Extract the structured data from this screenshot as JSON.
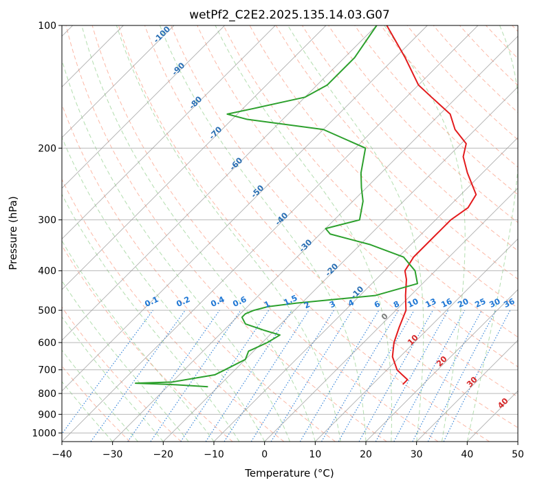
{
  "title": "wetPf2_C2E2.2025.135.14.03.G07",
  "chart_data": {
    "type": "line",
    "title": "wetPf2_C2E2.2025.135.14.03.G07",
    "xlabel": "Temperature (°C)",
    "ylabel": "Pressure (hPa)",
    "xlim": [
      -40,
      50
    ],
    "ylim": [
      1050,
      100
    ],
    "y_scale": "log",
    "grid": true,
    "x_ticks": [
      "−40",
      "−30",
      "−20",
      "−10",
      "0",
      "10",
      "20",
      "30",
      "40",
      "50"
    ],
    "y_ticks": [
      "100",
      "200",
      "300",
      "400",
      "500",
      "600",
      "700",
      "800",
      "900",
      "1000"
    ],
    "series": [
      {
        "color": "#e31a1c",
        "p": [
          760,
          740,
          720,
          700,
          650,
          600,
          550,
          500,
          460,
          420,
          400,
          370,
          340,
          320,
          300,
          280,
          260,
          230,
          210,
          195,
          180,
          165,
          150,
          140,
          120,
          100
        ],
        "t": [
          16,
          16,
          14,
          12,
          8.5,
          6,
          4,
          2,
          -1,
          -4,
          -6,
          -7,
          -7,
          -7,
          -7,
          -6,
          -7,
          -13,
          -17,
          -19,
          -24,
          -28,
          -35,
          -40,
          -48,
          -58
        ]
      },
      {
        "color": "#2ca02c",
        "p": [
          770,
          760,
          755,
          750,
          720,
          700,
          660,
          630,
          600,
          575,
          560,
          540,
          520,
          510,
          500,
          490,
          480,
          460,
          430,
          400,
          370,
          345,
          325,
          315,
          300,
          270,
          250,
          230,
          200,
          180,
          170,
          165,
          160,
          150,
          140,
          120,
          100
        ],
        "t": [
          -22,
          -30,
          -37,
          -30,
          -23,
          -22,
          -20,
          -21,
          -19,
          -18,
          -22,
          -27,
          -29,
          -29,
          -28,
          -26,
          -21,
          -7,
          -1,
          -4,
          -9,
          -18,
          -28,
          -30,
          -25,
          -28,
          -31,
          -34,
          -38,
          -50,
          -67,
          -72,
          -68,
          -60,
          -58,
          -58,
          -60
        ]
      }
    ],
    "dry_adiabat_labels": [
      "-100",
      "-90",
      "-80",
      "-70",
      "-60",
      "-50",
      "-40",
      "-30",
      "-20",
      "-10",
      "0",
      "10",
      "20",
      "30",
      "40"
    ],
    "mixing_ratio_labels": [
      "0.1",
      "0.2",
      "0.4",
      "0.6",
      "1",
      "1.5",
      "2",
      "3",
      "4",
      "6",
      "8",
      "10",
      "13",
      "16",
      "20",
      "25",
      "30",
      "36"
    ]
  },
  "colors": {
    "temperature": "#e31a1c",
    "dewpoint": "#2ca02c",
    "dry_adiabat": "#fb9a80",
    "moist_adiabat": "#9fd49a",
    "mixing_ratio": "#1f77d4",
    "isotherm_grid": "#9a9a9a",
    "theta_e": "#c8a98a"
  }
}
